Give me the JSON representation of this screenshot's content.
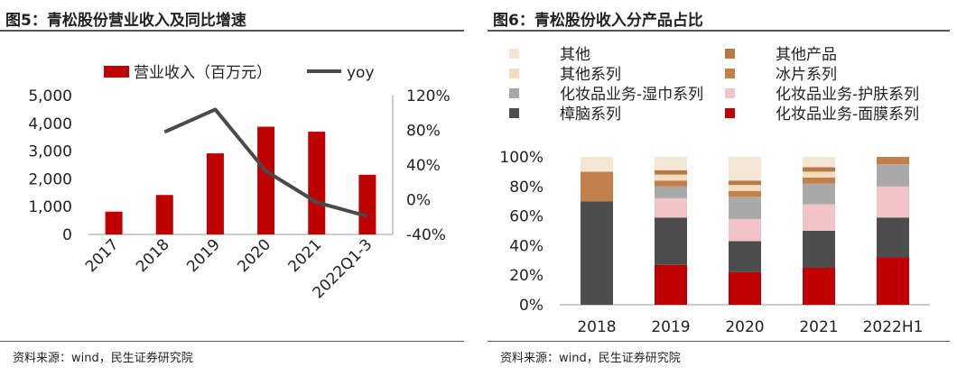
{
  "left": {
    "title": "图5：青松股份营业收入及同比增速",
    "source": "资料来源：wind，民生证券研究院",
    "chart_data": {
      "type": "bar",
      "categories": [
        "2017",
        "2018",
        "2019",
        "2020",
        "2021",
        "2022Q1-3"
      ],
      "series": [
        {
          "name": "营业收入（百万元）",
          "kind": "bar",
          "axis": "left",
          "color": "#c00000",
          "values": [
            820,
            1420,
            2920,
            3880,
            3700,
            2150
          ]
        },
        {
          "name": "yoy",
          "kind": "line",
          "axis": "right",
          "color": "#4a4a4a",
          "values": [
            null,
            78,
            104,
            33,
            -3,
            -19
          ]
        }
      ],
      "ylim": [
        0,
        5000
      ],
      "yticks": [
        "0",
        "1,000",
        "2,000",
        "3,000",
        "4,000",
        "5,000"
      ],
      "y2lim": [
        -40,
        120
      ],
      "y2ticks": [
        "-40%",
        "0%",
        "40%",
        "80%",
        "120%"
      ],
      "legend_position": "top"
    }
  },
  "right": {
    "title": "图6：青松股份收入分产品占比",
    "source": "资料来源：wind，民生证券研究院",
    "chart_data": {
      "type": "bar",
      "stacked": true,
      "categories": [
        "2018",
        "2019",
        "2020",
        "2021",
        "2022H1"
      ],
      "series": [
        {
          "name": "化妆品业务-面膜系列",
          "color": "#c00000",
          "values": [
            0,
            27,
            22,
            25,
            32
          ]
        },
        {
          "name": "樟脑系列",
          "color": "#4d4d4d",
          "values": [
            70,
            32,
            21,
            25,
            27
          ]
        },
        {
          "name": "化妆品业务-护肤系列",
          "color": "#f2c4c8",
          "values": [
            0,
            13,
            15,
            18,
            21
          ]
        },
        {
          "name": "化妆品业务-湿巾系列",
          "color": "#a9a9a9",
          "values": [
            0,
            8,
            15,
            14,
            15
          ]
        },
        {
          "name": "冰片系列",
          "color": "#c4804a",
          "values": [
            20,
            4,
            4,
            4,
            5
          ]
        },
        {
          "name": "其他系列",
          "color": "#f1dcc0",
          "values": [
            0,
            4,
            4,
            4,
            0
          ]
        },
        {
          "name": "其他产品",
          "color": "#b87a44",
          "values": [
            0,
            3,
            3,
            3,
            0
          ]
        },
        {
          "name": "其他",
          "color": "#f3e6d3",
          "values": [
            10,
            9,
            16,
            7,
            0
          ]
        }
      ],
      "legend_order": [
        "其他",
        "其他产品",
        "其他系列",
        "冰片系列",
        "化妆品业务-湿巾系列",
        "化妆品业务-护肤系列",
        "樟脑系列",
        "化妆品业务-面膜系列"
      ],
      "ylim": [
        0,
        100
      ],
      "yticks": [
        "0%",
        "20%",
        "40%",
        "60%",
        "80%",
        "100%"
      ],
      "legend_position": "top"
    }
  }
}
